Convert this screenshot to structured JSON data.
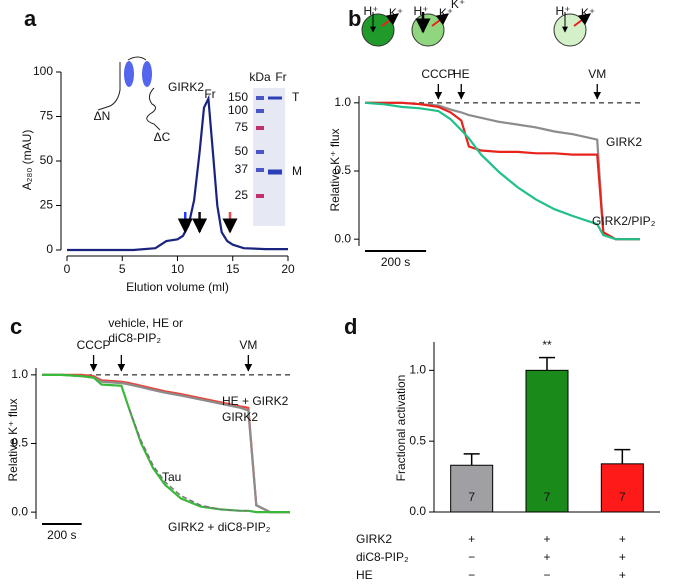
{
  "chart_data": [
    {
      "type": "line",
      "label": "a",
      "ylabel": "A₂₈₀ (mAU)",
      "xlabel": "Elution volume (ml)",
      "x": [
        0,
        2,
        4,
        6,
        8,
        9,
        10,
        10.5,
        11,
        11.5,
        12,
        12.4,
        12.8,
        13.2,
        13.6,
        14,
        14.5,
        15,
        16,
        18,
        20
      ],
      "series": [
        {
          "color": "#1a237e",
          "values": [
            0,
            0,
            0,
            0,
            1,
            5,
            6,
            8,
            14,
            28,
            55,
            80,
            85,
            55,
            25,
            10,
            5,
            3,
            1,
            0.5,
            0.5
          ]
        }
      ],
      "xlim": [
        0,
        20
      ],
      "xticks": [
        0,
        5,
        10,
        15,
        20
      ],
      "ylim": [
        0,
        100
      ],
      "yticks": [
        0,
        25,
        50,
        75,
        100
      ],
      "markers": [
        {
          "x": 10.7,
          "color": "#1e3cff"
        },
        {
          "x": 12.0,
          "color": "#111111"
        },
        {
          "x": 14.75,
          "color": "#f04848"
        }
      ],
      "peak_label": "Fr",
      "schematic": {
        "protein": "GIRK2",
        "n_term": "ΔN",
        "c_term": "ΔC"
      },
      "gel": {
        "unit": "kDa",
        "lane": "Fr",
        "ladder": [
          "150",
          "100",
          "75",
          "50",
          "37",
          "25"
        ],
        "bands": [
          "T",
          "M"
        ]
      }
    },
    {
      "type": "line",
      "label": "b",
      "ylabel": "Relative K⁺ flux",
      "x": [
        0,
        60,
        120,
        180,
        240,
        280,
        315,
        340,
        380,
        440,
        500,
        560,
        620,
        680,
        760,
        780,
        820,
        900
      ],
      "series": [
        {
          "name": "GIRK2",
          "color": "#8c8c8c",
          "values": [
            1.0,
            1.0,
            1.0,
            0.99,
            0.98,
            0.95,
            0.93,
            0.91,
            0.89,
            0.86,
            0.84,
            0.82,
            0.79,
            0.77,
            0.73,
            0.05,
            0.0,
            0.0
          ]
        },
        {
          "color": "#e8231c",
          "values": [
            1.0,
            1.0,
            1.0,
            0.99,
            0.97,
            0.93,
            0.87,
            0.68,
            0.65,
            0.64,
            0.64,
            0.63,
            0.63,
            0.62,
            0.62,
            0.05,
            0.0,
            0.0
          ]
        },
        {
          "name": "GIRK2/PIP₂",
          "color": "#20c08a",
          "values": [
            1.0,
            0.99,
            0.97,
            0.96,
            0.94,
            0.88,
            0.8,
            0.74,
            0.62,
            0.49,
            0.38,
            0.29,
            0.22,
            0.17,
            0.11,
            0.03,
            0.0,
            0.0
          ]
        }
      ],
      "xlim": [
        0,
        900
      ],
      "ylim": [
        -0.05,
        1.05
      ],
      "yticks": [
        {
          "value": 0,
          "label": "0.0"
        },
        {
          "value": 0.5,
          "label": "0.5"
        },
        {
          "value": 1,
          "label": "1.0"
        }
      ],
      "reference_line": 1,
      "events": [
        {
          "label": "CCCP",
          "x": 240,
          "color": "#000000"
        },
        {
          "label": "HE",
          "x": 315,
          "color": "#e8231c"
        },
        {
          "label": "VM",
          "x": 760,
          "color": "#000000"
        }
      ],
      "scalebar": {
        "label": "200 s",
        "length": 200
      },
      "schematic": [
        {
          "labels": [
            "H⁺",
            "K⁺"
          ]
        },
        {
          "labels": [
            "H⁺",
            "K⁺",
            "K⁺"
          ]
        },
        {
          "labels": [
            "H⁺",
            "K⁺"
          ]
        }
      ]
    },
    {
      "type": "line",
      "label": "c",
      "ylabel": "Relative K⁺ flux",
      "x": [
        0,
        100,
        200,
        260,
        300,
        400,
        440,
        500,
        560,
        620,
        700,
        800,
        900,
        1000,
        1040,
        1080,
        1150,
        1250
      ],
      "series": [
        {
          "name": "HE + GIRK2",
          "color": "#e8463c",
          "values": [
            1.0,
            1.0,
            1.0,
            0.99,
            0.96,
            0.95,
            0.94,
            0.92,
            0.9,
            0.88,
            0.86,
            0.83,
            0.8,
            0.77,
            0.76,
            0.05,
            0.0,
            0.0
          ]
        },
        {
          "name": "GIRK2",
          "color": "#8c8c8c",
          "values": [
            1.0,
            1.0,
            0.99,
            0.98,
            0.95,
            0.94,
            0.93,
            0.91,
            0.89,
            0.87,
            0.85,
            0.82,
            0.79,
            0.76,
            0.74,
            0.05,
            0.0,
            0.0
          ]
        },
        {
          "name": "GIRK2 + diC8-PIP₂",
          "color": "#3ab83a",
          "values": [
            1.0,
            1.0,
            0.99,
            0.98,
            0.93,
            0.92,
            0.75,
            0.5,
            0.32,
            0.2,
            0.1,
            0.04,
            0.02,
            0.01,
            0.01,
            0.0,
            0.0,
            0.0
          ]
        },
        {
          "name": "Tau",
          "color": "#777777",
          "dashed": true,
          "values": [
            null,
            null,
            null,
            null,
            null,
            null,
            0.75,
            0.52,
            0.34,
            0.22,
            0.12,
            0.05,
            0.02,
            0.01,
            0.01,
            null,
            null,
            null
          ]
        }
      ],
      "xlim": [
        0,
        1250
      ],
      "ylim": [
        -0.05,
        1.05
      ],
      "yticks": [
        {
          "value": 0,
          "label": "0.0"
        },
        {
          "value": 0.5,
          "label": "0.5"
        },
        {
          "value": 1,
          "label": "1.0"
        }
      ],
      "reference_line": 1,
      "events": [
        {
          "label": "CCCP",
          "x": 260,
          "color": "#000000"
        },
        {
          "label": [
            "vehicle, HE or",
            "diC8-PIP₂"
          ],
          "x": 400,
          "color": "#000000"
        },
        {
          "label": "VM",
          "x": 1040,
          "color": "#000000"
        }
      ],
      "scalebar": {
        "label": "200 s",
        "length": 200
      }
    },
    {
      "type": "bar",
      "label": "d",
      "ylabel": "Fractional activation",
      "values": [
        0.33,
        1.0,
        0.34
      ],
      "errors": [
        0.08,
        0.09,
        0.1
      ],
      "colors": [
        "#a0a0a4",
        "#1a8a1a",
        "#ff1a1a"
      ],
      "value_labels": [
        "7",
        "7",
        "7"
      ],
      "significance": [
        null,
        "**",
        null
      ],
      "ylim": [
        0,
        1.2
      ],
      "yticks": [
        {
          "value": 0,
          "label": "0.0"
        },
        {
          "value": 0.5,
          "label": "0.5"
        },
        {
          "value": 1,
          "label": "1.0"
        }
      ],
      "conditions": [
        {
          "label": "GIRK2",
          "signs": [
            "+",
            "+",
            "+"
          ]
        },
        {
          "label": "diC8-PIP₂",
          "signs": [
            "−",
            "+",
            "+"
          ]
        },
        {
          "label": "HE",
          "signs": [
            "−",
            "−",
            "+"
          ]
        }
      ]
    }
  ]
}
